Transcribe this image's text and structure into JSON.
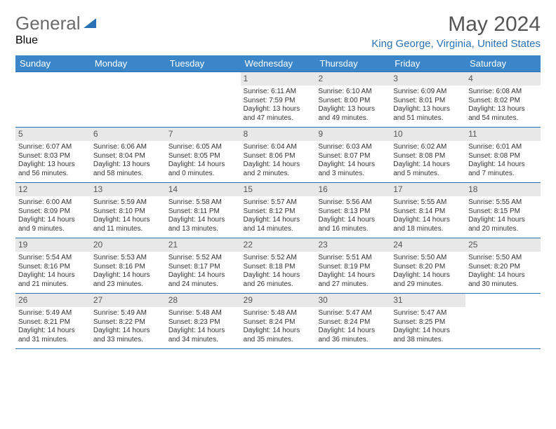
{
  "logo": {
    "text1": "General",
    "text2": "Blue"
  },
  "title": {
    "month": "May 2024",
    "location": "King George, Virginia, United States"
  },
  "colors": {
    "header_bg": "#3b86c8",
    "accent": "#2a72b5",
    "daynum_bg": "#e8e8e8",
    "text": "#333333"
  },
  "weekdays": [
    "Sunday",
    "Monday",
    "Tuesday",
    "Wednesday",
    "Thursday",
    "Friday",
    "Saturday"
  ],
  "weeks": [
    [
      null,
      null,
      null,
      {
        "n": "1",
        "sr": "Sunrise: 6:11 AM",
        "ss": "Sunset: 7:59 PM",
        "d1": "Daylight: 13 hours",
        "d2": "and 47 minutes."
      },
      {
        "n": "2",
        "sr": "Sunrise: 6:10 AM",
        "ss": "Sunset: 8:00 PM",
        "d1": "Daylight: 13 hours",
        "d2": "and 49 minutes."
      },
      {
        "n": "3",
        "sr": "Sunrise: 6:09 AM",
        "ss": "Sunset: 8:01 PM",
        "d1": "Daylight: 13 hours",
        "d2": "and 51 minutes."
      },
      {
        "n": "4",
        "sr": "Sunrise: 6:08 AM",
        "ss": "Sunset: 8:02 PM",
        "d1": "Daylight: 13 hours",
        "d2": "and 54 minutes."
      }
    ],
    [
      {
        "n": "5",
        "sr": "Sunrise: 6:07 AM",
        "ss": "Sunset: 8:03 PM",
        "d1": "Daylight: 13 hours",
        "d2": "and 56 minutes."
      },
      {
        "n": "6",
        "sr": "Sunrise: 6:06 AM",
        "ss": "Sunset: 8:04 PM",
        "d1": "Daylight: 13 hours",
        "d2": "and 58 minutes."
      },
      {
        "n": "7",
        "sr": "Sunrise: 6:05 AM",
        "ss": "Sunset: 8:05 PM",
        "d1": "Daylight: 14 hours",
        "d2": "and 0 minutes."
      },
      {
        "n": "8",
        "sr": "Sunrise: 6:04 AM",
        "ss": "Sunset: 8:06 PM",
        "d1": "Daylight: 14 hours",
        "d2": "and 2 minutes."
      },
      {
        "n": "9",
        "sr": "Sunrise: 6:03 AM",
        "ss": "Sunset: 8:07 PM",
        "d1": "Daylight: 14 hours",
        "d2": "and 3 minutes."
      },
      {
        "n": "10",
        "sr": "Sunrise: 6:02 AM",
        "ss": "Sunset: 8:08 PM",
        "d1": "Daylight: 14 hours",
        "d2": "and 5 minutes."
      },
      {
        "n": "11",
        "sr": "Sunrise: 6:01 AM",
        "ss": "Sunset: 8:08 PM",
        "d1": "Daylight: 14 hours",
        "d2": "and 7 minutes."
      }
    ],
    [
      {
        "n": "12",
        "sr": "Sunrise: 6:00 AM",
        "ss": "Sunset: 8:09 PM",
        "d1": "Daylight: 14 hours",
        "d2": "and 9 minutes."
      },
      {
        "n": "13",
        "sr": "Sunrise: 5:59 AM",
        "ss": "Sunset: 8:10 PM",
        "d1": "Daylight: 14 hours",
        "d2": "and 11 minutes."
      },
      {
        "n": "14",
        "sr": "Sunrise: 5:58 AM",
        "ss": "Sunset: 8:11 PM",
        "d1": "Daylight: 14 hours",
        "d2": "and 13 minutes."
      },
      {
        "n": "15",
        "sr": "Sunrise: 5:57 AM",
        "ss": "Sunset: 8:12 PM",
        "d1": "Daylight: 14 hours",
        "d2": "and 14 minutes."
      },
      {
        "n": "16",
        "sr": "Sunrise: 5:56 AM",
        "ss": "Sunset: 8:13 PM",
        "d1": "Daylight: 14 hours",
        "d2": "and 16 minutes."
      },
      {
        "n": "17",
        "sr": "Sunrise: 5:55 AM",
        "ss": "Sunset: 8:14 PM",
        "d1": "Daylight: 14 hours",
        "d2": "and 18 minutes."
      },
      {
        "n": "18",
        "sr": "Sunrise: 5:55 AM",
        "ss": "Sunset: 8:15 PM",
        "d1": "Daylight: 14 hours",
        "d2": "and 20 minutes."
      }
    ],
    [
      {
        "n": "19",
        "sr": "Sunrise: 5:54 AM",
        "ss": "Sunset: 8:16 PM",
        "d1": "Daylight: 14 hours",
        "d2": "and 21 minutes."
      },
      {
        "n": "20",
        "sr": "Sunrise: 5:53 AM",
        "ss": "Sunset: 8:16 PM",
        "d1": "Daylight: 14 hours",
        "d2": "and 23 minutes."
      },
      {
        "n": "21",
        "sr": "Sunrise: 5:52 AM",
        "ss": "Sunset: 8:17 PM",
        "d1": "Daylight: 14 hours",
        "d2": "and 24 minutes."
      },
      {
        "n": "22",
        "sr": "Sunrise: 5:52 AM",
        "ss": "Sunset: 8:18 PM",
        "d1": "Daylight: 14 hours",
        "d2": "and 26 minutes."
      },
      {
        "n": "23",
        "sr": "Sunrise: 5:51 AM",
        "ss": "Sunset: 8:19 PM",
        "d1": "Daylight: 14 hours",
        "d2": "and 27 minutes."
      },
      {
        "n": "24",
        "sr": "Sunrise: 5:50 AM",
        "ss": "Sunset: 8:20 PM",
        "d1": "Daylight: 14 hours",
        "d2": "and 29 minutes."
      },
      {
        "n": "25",
        "sr": "Sunrise: 5:50 AM",
        "ss": "Sunset: 8:20 PM",
        "d1": "Daylight: 14 hours",
        "d2": "and 30 minutes."
      }
    ],
    [
      {
        "n": "26",
        "sr": "Sunrise: 5:49 AM",
        "ss": "Sunset: 8:21 PM",
        "d1": "Daylight: 14 hours",
        "d2": "and 31 minutes."
      },
      {
        "n": "27",
        "sr": "Sunrise: 5:49 AM",
        "ss": "Sunset: 8:22 PM",
        "d1": "Daylight: 14 hours",
        "d2": "and 33 minutes."
      },
      {
        "n": "28",
        "sr": "Sunrise: 5:48 AM",
        "ss": "Sunset: 8:23 PM",
        "d1": "Daylight: 14 hours",
        "d2": "and 34 minutes."
      },
      {
        "n": "29",
        "sr": "Sunrise: 5:48 AM",
        "ss": "Sunset: 8:24 PM",
        "d1": "Daylight: 14 hours",
        "d2": "and 35 minutes."
      },
      {
        "n": "30",
        "sr": "Sunrise: 5:47 AM",
        "ss": "Sunset: 8:24 PM",
        "d1": "Daylight: 14 hours",
        "d2": "and 36 minutes."
      },
      {
        "n": "31",
        "sr": "Sunrise: 5:47 AM",
        "ss": "Sunset: 8:25 PM",
        "d1": "Daylight: 14 hours",
        "d2": "and 38 minutes."
      },
      null
    ]
  ]
}
